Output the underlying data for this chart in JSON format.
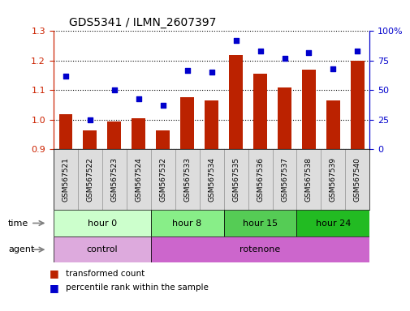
{
  "title": "GDS5341 / ILMN_2607397",
  "samples": [
    "GSM567521",
    "GSM567522",
    "GSM567523",
    "GSM567524",
    "GSM567532",
    "GSM567533",
    "GSM567534",
    "GSM567535",
    "GSM567536",
    "GSM567537",
    "GSM567538",
    "GSM567539",
    "GSM567540"
  ],
  "bar_values": [
    1.02,
    0.965,
    0.995,
    1.005,
    0.965,
    1.075,
    1.065,
    1.22,
    1.155,
    1.11,
    1.17,
    1.065,
    1.2
  ],
  "dot_values": [
    62,
    25,
    50,
    43,
    37,
    67,
    65,
    92,
    83,
    77,
    82,
    68,
    83
  ],
  "ylim_left": [
    0.9,
    1.3
  ],
  "ylim_right": [
    0,
    100
  ],
  "yticks_left": [
    0.9,
    1.0,
    1.1,
    1.2,
    1.3
  ],
  "yticks_right": [
    0,
    25,
    50,
    75,
    100
  ],
  "bar_color": "#bb2200",
  "dot_color": "#0000cc",
  "bar_baseline": 0.9,
  "time_groups": [
    {
      "label": "hour 0",
      "start": 0,
      "end": 4,
      "color": "#ccffcc"
    },
    {
      "label": "hour 8",
      "start": 4,
      "end": 7,
      "color": "#88ee88"
    },
    {
      "label": "hour 15",
      "start": 7,
      "end": 10,
      "color": "#55cc55"
    },
    {
      "label": "hour 24",
      "start": 10,
      "end": 13,
      "color": "#22bb22"
    }
  ],
  "agent_groups": [
    {
      "label": "control",
      "start": 0,
      "end": 4,
      "color": "#ddaadd"
    },
    {
      "label": "rotenone",
      "start": 4,
      "end": 13,
      "color": "#cc66cc"
    }
  ],
  "legend_bar_label": "transformed count",
  "legend_dot_label": "percentile rank within the sample",
  "time_label": "time",
  "agent_label": "agent",
  "grid_color": "black",
  "background_color": "white",
  "plot_bg": "white",
  "tick_label_color_left": "#cc2200",
  "tick_label_color_right": "#0000cc",
  "gsm_bg_color": "#dddddd",
  "gsm_border_color": "#999999"
}
